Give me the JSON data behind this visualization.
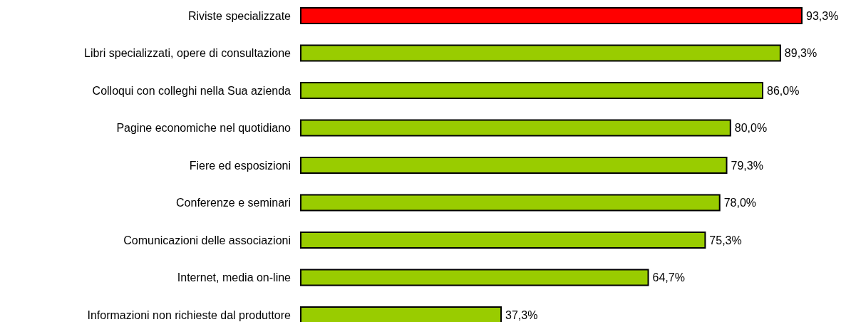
{
  "chart_data": {
    "type": "bar",
    "orientation": "horizontal",
    "categories": [
      "Riviste specializzate",
      "Libri specializzati, opere di consultazione",
      "Colloqui con colleghi nella Sua azienda",
      "Pagine economiche nel quotidiano",
      "Fiere ed esposizioni",
      "Conferenze e seminari",
      "Comunicazioni delle associazioni",
      "Internet, media on-line",
      "Informazioni non richieste dal produttore"
    ],
    "values": [
      93.3,
      89.3,
      86.0,
      80.0,
      79.3,
      78.0,
      75.3,
      64.7,
      37.3
    ],
    "colors": [
      "#ff0000",
      "#99cc00",
      "#99cc00",
      "#99cc00",
      "#99cc00",
      "#99cc00",
      "#99cc00",
      "#99cc00",
      "#99cc00"
    ],
    "value_labels": [
      "93,3%",
      "89,3%",
      "86,0%",
      "80,0%",
      "79,3%",
      "78,0%",
      "75,3%",
      "64,7%",
      "37,3%"
    ]
  }
}
